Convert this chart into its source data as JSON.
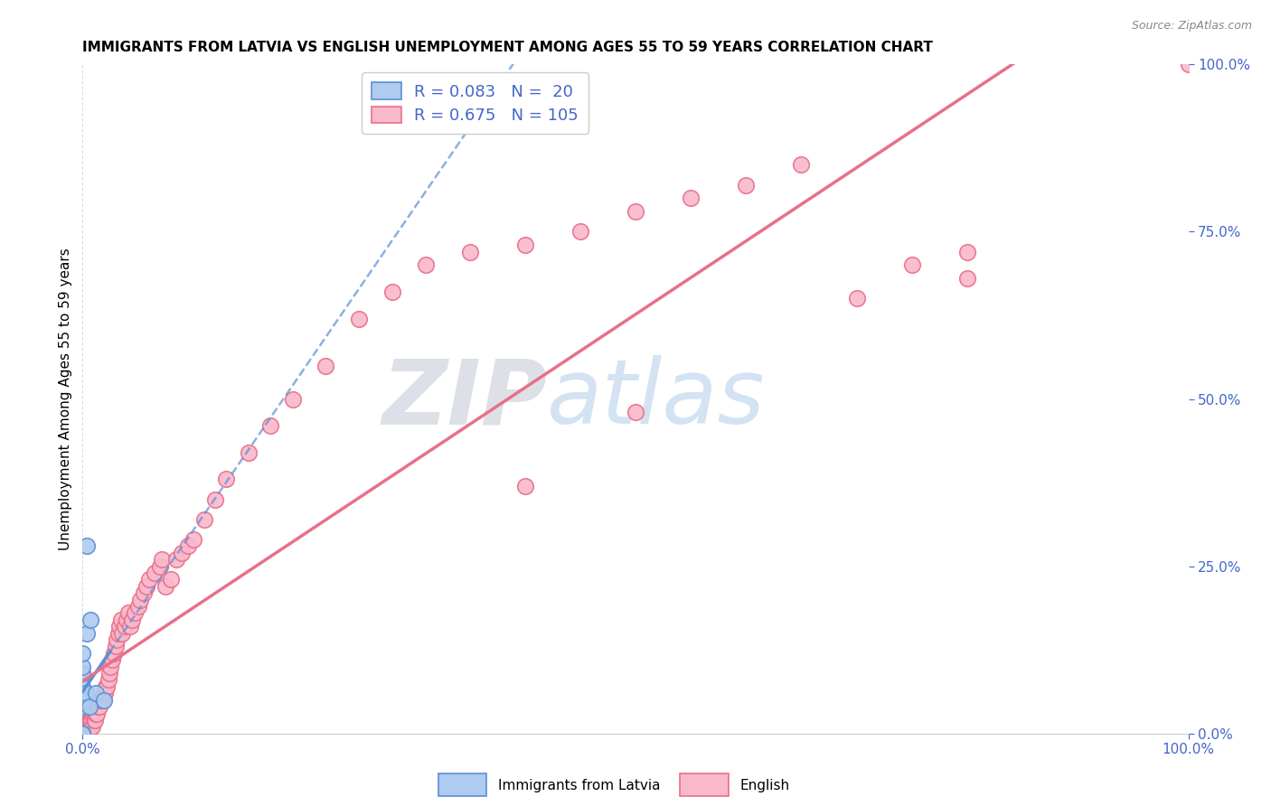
{
  "title": "IMMIGRANTS FROM LATVIA VS ENGLISH UNEMPLOYMENT AMONG AGES 55 TO 59 YEARS CORRELATION CHART",
  "source": "Source: ZipAtlas.com",
  "ylabel": "Unemployment Among Ages 55 to 59 years",
  "watermark_zip": "ZIP",
  "watermark_atlas": "atlas",
  "legend": {
    "latvian": {
      "R": 0.083,
      "N": 20,
      "color": "#aecbf0",
      "edge_color": "#5b8fd4"
    },
    "english": {
      "R": 0.675,
      "N": 105,
      "color": "#f9b8cb",
      "edge_color": "#e8708a"
    }
  },
  "background_color": "#ffffff",
  "grid_color": "#d8d8e8",
  "latvian_x": [
    0.0,
    0.0,
    0.0,
    0.0,
    0.0,
    0.0,
    0.0,
    0.0,
    0.0,
    0.0,
    0.0,
    0.0,
    0.002,
    0.003,
    0.004,
    0.006,
    0.007,
    0.012,
    0.019,
    0.004
  ],
  "latvian_y": [
    0.0,
    0.0,
    0.0,
    0.0,
    0.0,
    0.04,
    0.05,
    0.06,
    0.07,
    0.09,
    0.1,
    0.12,
    0.05,
    0.06,
    0.15,
    0.04,
    0.17,
    0.06,
    0.05,
    0.28
  ],
  "english_x": [
    0.0,
    0.0,
    0.0,
    0.0,
    0.0,
    0.0,
    0.0,
    0.0,
    0.0,
    0.0,
    0.001,
    0.001,
    0.001,
    0.001,
    0.002,
    0.002,
    0.002,
    0.003,
    0.003,
    0.003,
    0.003,
    0.004,
    0.004,
    0.005,
    0.005,
    0.005,
    0.006,
    0.006,
    0.007,
    0.007,
    0.008,
    0.008,
    0.009,
    0.009,
    0.01,
    0.01,
    0.011,
    0.011,
    0.012,
    0.012,
    0.013,
    0.014,
    0.015,
    0.016,
    0.017,
    0.018,
    0.019,
    0.02,
    0.021,
    0.022,
    0.023,
    0.024,
    0.025,
    0.027,
    0.028,
    0.03,
    0.031,
    0.032,
    0.033,
    0.035,
    0.036,
    0.038,
    0.04,
    0.041,
    0.043,
    0.045,
    0.047,
    0.05,
    0.052,
    0.055,
    0.058,
    0.06,
    0.065,
    0.07,
    0.072,
    0.075,
    0.08,
    0.085,
    0.09,
    0.095,
    0.1,
    0.11,
    0.12,
    0.13,
    0.15,
    0.17,
    0.19,
    0.22,
    0.25,
    0.28,
    0.31,
    0.35,
    0.4,
    0.45,
    0.5,
    0.55,
    0.6,
    0.65,
    0.75,
    0.8,
    0.7,
    0.8,
    0.5,
    0.4,
    1.0
  ],
  "english_y": [
    0.0,
    0.0,
    0.0,
    0.0,
    0.0,
    0.0,
    0.0,
    0.0,
    0.0,
    0.01,
    0.0,
    0.0,
    0.0,
    0.01,
    0.0,
    0.0,
    0.01,
    0.0,
    0.0,
    0.01,
    0.02,
    0.0,
    0.01,
    0.0,
    0.01,
    0.02,
    0.01,
    0.02,
    0.01,
    0.02,
    0.01,
    0.02,
    0.01,
    0.03,
    0.02,
    0.03,
    0.02,
    0.04,
    0.03,
    0.04,
    0.03,
    0.04,
    0.04,
    0.05,
    0.05,
    0.05,
    0.06,
    0.06,
    0.07,
    0.07,
    0.08,
    0.09,
    0.1,
    0.11,
    0.12,
    0.13,
    0.14,
    0.15,
    0.16,
    0.17,
    0.15,
    0.16,
    0.17,
    0.18,
    0.16,
    0.17,
    0.18,
    0.19,
    0.2,
    0.21,
    0.22,
    0.23,
    0.24,
    0.25,
    0.26,
    0.22,
    0.23,
    0.26,
    0.27,
    0.28,
    0.29,
    0.32,
    0.35,
    0.38,
    0.42,
    0.46,
    0.5,
    0.55,
    0.62,
    0.66,
    0.7,
    0.72,
    0.73,
    0.75,
    0.78,
    0.8,
    0.82,
    0.85,
    0.7,
    0.68,
    0.65,
    0.72,
    0.48,
    0.37,
    1.0
  ],
  "xlim": [
    0.0,
    1.0
  ],
  "ylim": [
    0.0,
    1.0
  ],
  "xtick_positions": [
    0.0,
    1.0
  ],
  "xtick_labels": [
    "0.0%",
    "100.0%"
  ],
  "ytick_positions": [
    0.0,
    0.25,
    0.5,
    0.75,
    1.0
  ],
  "ytick_labels": [
    "0.0%",
    "25.0%",
    "50.0%",
    "75.0%",
    "100.0%"
  ],
  "tick_color": "#4466cc",
  "title_fontsize": 11,
  "axis_fontsize": 11,
  "legend_fontsize": 13
}
